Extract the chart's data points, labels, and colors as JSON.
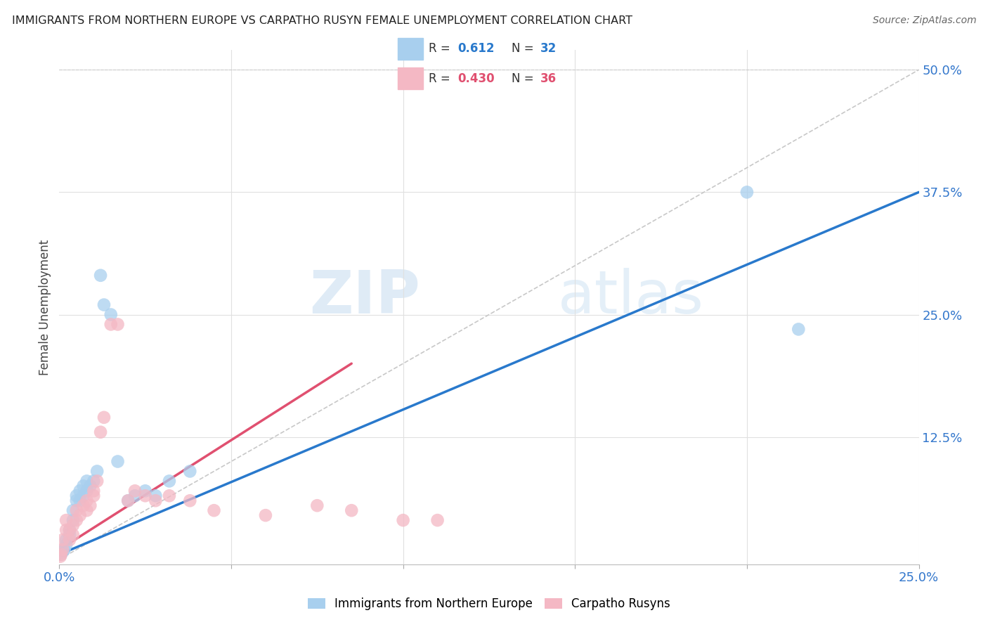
{
  "title": "IMMIGRANTS FROM NORTHERN EUROPE VS CARPATHO RUSYN FEMALE UNEMPLOYMENT CORRELATION CHART",
  "source": "Source: ZipAtlas.com",
  "xlabel_blue": "Immigrants from Northern Europe",
  "xlabel_pink": "Carpatho Rusyns",
  "ylabel": "Female Unemployment",
  "blue_R": "0.612",
  "blue_N": "32",
  "pink_R": "0.430",
  "pink_N": "36",
  "blue_color": "#A8CFEE",
  "pink_color": "#F4B8C4",
  "blue_line_color": "#2979CC",
  "pink_line_color": "#E05070",
  "diag_line_color": "#C8C8C8",
  "watermark_zip": "ZIP",
  "watermark_atlas": "atlas",
  "blue_scatter_x": [
    0.0005,
    0.001,
    0.0015,
    0.002,
    0.002,
    0.003,
    0.003,
    0.004,
    0.004,
    0.005,
    0.005,
    0.006,
    0.006,
    0.007,
    0.007,
    0.008,
    0.008,
    0.009,
    0.01,
    0.011,
    0.012,
    0.013,
    0.015,
    0.017,
    0.02,
    0.022,
    0.025,
    0.028,
    0.032,
    0.038,
    0.2,
    0.215
  ],
  "blue_scatter_y": [
    0.005,
    0.008,
    0.01,
    0.015,
    0.02,
    0.025,
    0.03,
    0.04,
    0.05,
    0.06,
    0.065,
    0.06,
    0.07,
    0.065,
    0.075,
    0.07,
    0.08,
    0.075,
    0.08,
    0.09,
    0.29,
    0.26,
    0.25,
    0.1,
    0.06,
    0.065,
    0.07,
    0.065,
    0.08,
    0.09,
    0.375,
    0.235
  ],
  "pink_scatter_x": [
    0.0003,
    0.0005,
    0.001,
    0.001,
    0.002,
    0.002,
    0.003,
    0.003,
    0.004,
    0.004,
    0.005,
    0.005,
    0.006,
    0.007,
    0.008,
    0.008,
    0.009,
    0.01,
    0.01,
    0.011,
    0.012,
    0.013,
    0.015,
    0.017,
    0.02,
    0.022,
    0.025,
    0.028,
    0.032,
    0.038,
    0.045,
    0.06,
    0.075,
    0.085,
    0.1,
    0.11
  ],
  "pink_scatter_y": [
    0.003,
    0.005,
    0.01,
    0.02,
    0.03,
    0.04,
    0.03,
    0.02,
    0.025,
    0.035,
    0.04,
    0.05,
    0.045,
    0.055,
    0.05,
    0.06,
    0.055,
    0.065,
    0.07,
    0.08,
    0.13,
    0.145,
    0.24,
    0.24,
    0.06,
    0.07,
    0.065,
    0.06,
    0.065,
    0.06,
    0.05,
    0.045,
    0.055,
    0.05,
    0.04,
    0.04
  ],
  "blue_line_x": [
    0.0,
    0.25
  ],
  "blue_line_y": [
    0.005,
    0.375
  ],
  "pink_line_x": [
    0.0,
    0.085
  ],
  "pink_line_y": [
    0.01,
    0.2
  ],
  "diag_line_x": [
    0.0,
    0.25
  ],
  "diag_line_y": [
    0.0,
    0.5
  ],
  "xlim": [
    0.0,
    0.25
  ],
  "ylim": [
    -0.005,
    0.52
  ],
  "figsize": [
    14.06,
    8.92
  ],
  "dpi": 100
}
